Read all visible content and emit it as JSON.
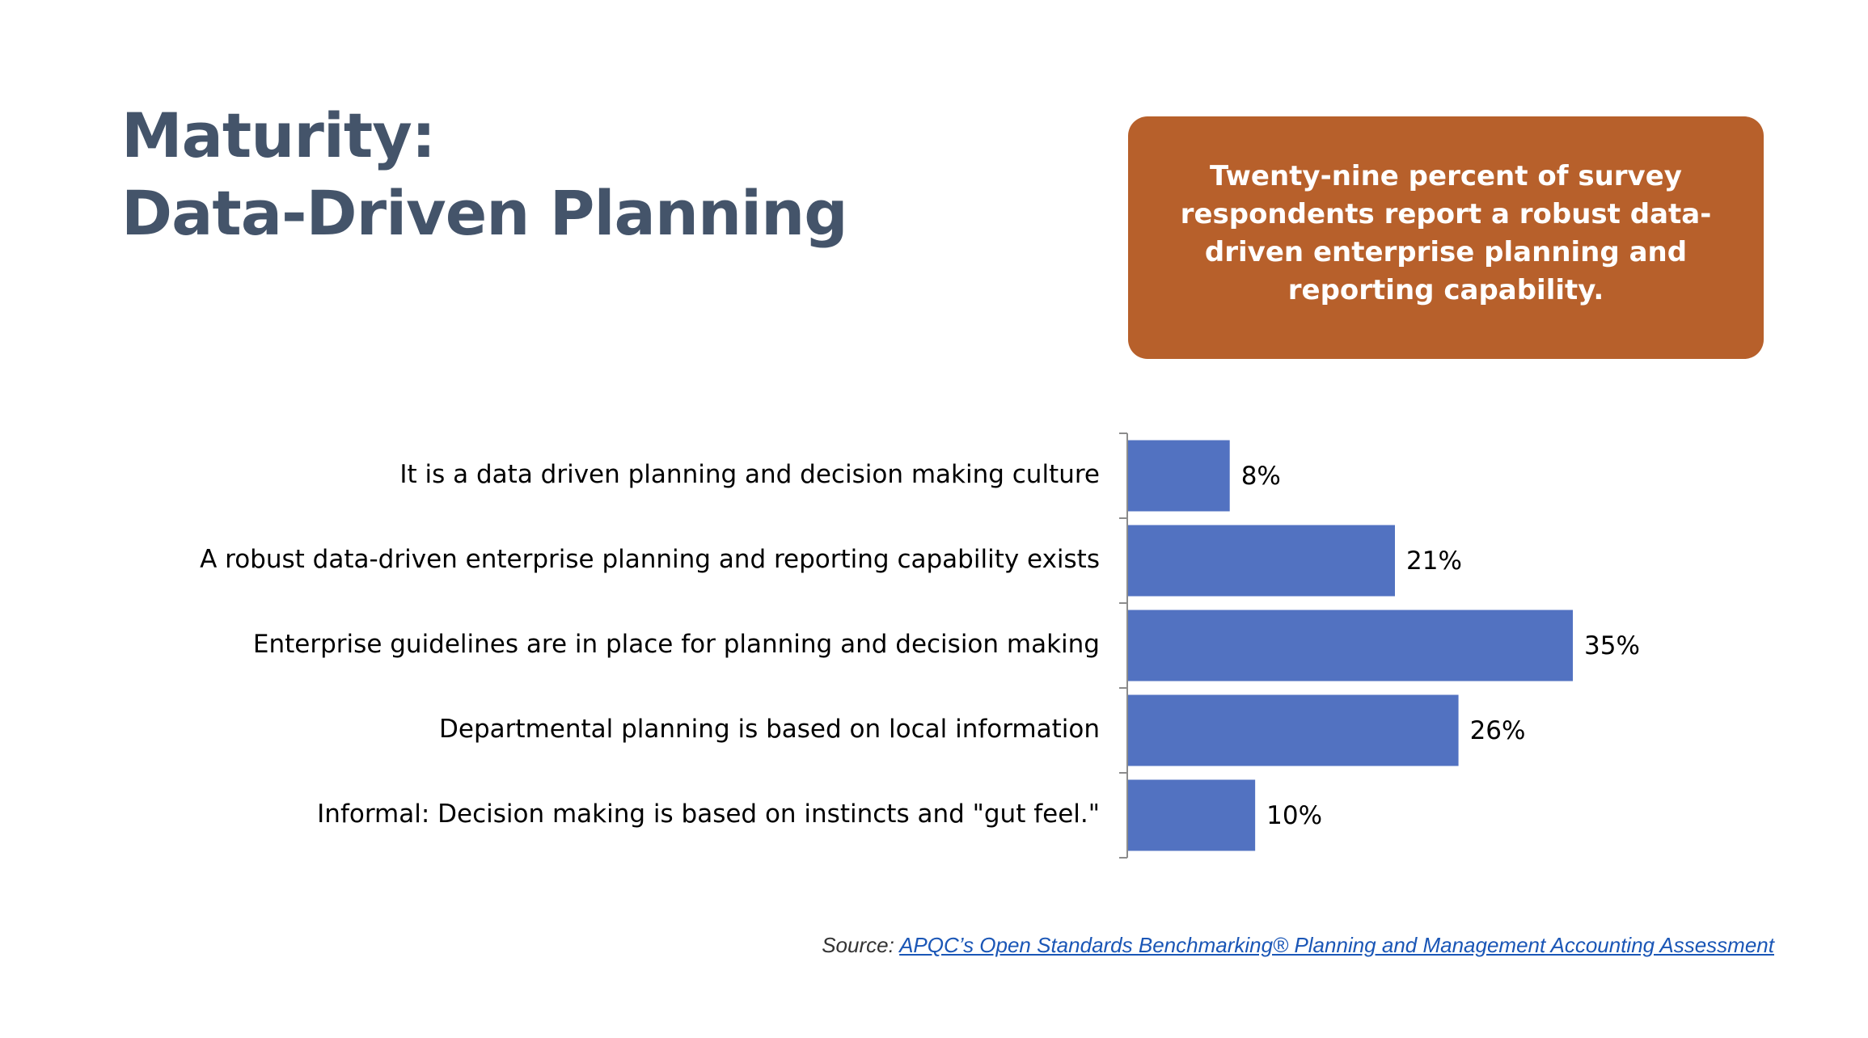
{
  "title": {
    "line1": "Maturity:",
    "line2": "Data-Driven Planning"
  },
  "callout": {
    "text": "Twenty-nine percent of survey respondents report a robust data-driven enterprise planning and reporting capability."
  },
  "colors": {
    "title": "#44546a",
    "callout_bg": "#b7602b",
    "bar": "#5272c1",
    "link": "#1a56b6"
  },
  "chart_data": {
    "type": "bar",
    "orientation": "horizontal",
    "categories": [
      "It is a data driven planning and decision making culture",
      "A robust data-driven enterprise planning and reporting capability exists",
      "Enterprise guidelines are in place for planning and decision making",
      "Departmental planning is based on local information",
      "Informal: Decision making is based on instincts and \"gut feel.\""
    ],
    "values": [
      8,
      21,
      35,
      26,
      10
    ],
    "value_labels": [
      "8%",
      "21%",
      "35%",
      "26%",
      "10%"
    ],
    "unit": "%",
    "xlim": [
      0,
      35
    ],
    "grid": false,
    "legend": "none"
  },
  "source": {
    "prefix": "Source:",
    "link_text": "APQC’s Open Standards Benchmarking® Planning and Management Accounting Assessment"
  }
}
